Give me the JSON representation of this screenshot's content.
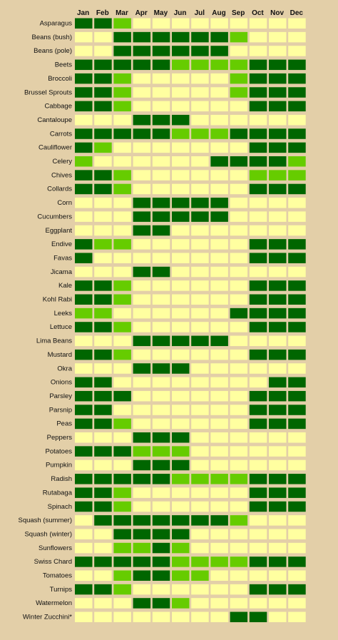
{
  "chart_data": {
    "type": "heatmap",
    "months": [
      "Jan",
      "Feb",
      "Mar",
      "Apr",
      "May",
      "Jun",
      "Jul",
      "Aug",
      "Sep",
      "Oct",
      "Nov",
      "Dec"
    ],
    "colors": {
      "0": "#ffffa0",
      "1": "#66cc00",
      "2": "#006600"
    },
    "rows": [
      {
        "crop": "Asparagus",
        "values": [
          2,
          2,
          1,
          0,
          0,
          0,
          0,
          0,
          0,
          0,
          0,
          0
        ]
      },
      {
        "crop": "Beans (bush)",
        "values": [
          0,
          0,
          2,
          2,
          2,
          2,
          2,
          2,
          1,
          0,
          0,
          0
        ]
      },
      {
        "crop": "Beans (pole)",
        "values": [
          0,
          0,
          2,
          2,
          2,
          2,
          2,
          2,
          0,
          0,
          0,
          0
        ]
      },
      {
        "crop": "Beets",
        "values": [
          2,
          2,
          2,
          2,
          2,
          1,
          1,
          1,
          1,
          2,
          2,
          2
        ]
      },
      {
        "crop": "Broccoli",
        "values": [
          2,
          2,
          1,
          0,
          0,
          0,
          0,
          0,
          1,
          2,
          2,
          2
        ]
      },
      {
        "crop": "Brussel Sprouts",
        "values": [
          2,
          2,
          1,
          0,
          0,
          0,
          0,
          0,
          1,
          2,
          2,
          2
        ]
      },
      {
        "crop": "Cabbage",
        "values": [
          2,
          2,
          1,
          0,
          0,
          0,
          0,
          0,
          0,
          2,
          2,
          2
        ]
      },
      {
        "crop": "Cantaloupe",
        "values": [
          0,
          0,
          0,
          2,
          2,
          2,
          0,
          0,
          0,
          0,
          0,
          0
        ]
      },
      {
        "crop": "Carrots",
        "values": [
          2,
          2,
          2,
          2,
          2,
          1,
          1,
          1,
          2,
          2,
          2,
          2
        ]
      },
      {
        "crop": "Cauliflower",
        "values": [
          2,
          1,
          0,
          0,
          0,
          0,
          0,
          0,
          0,
          2,
          2,
          2
        ]
      },
      {
        "crop": "Celery",
        "values": [
          1,
          0,
          0,
          0,
          0,
          0,
          0,
          2,
          2,
          2,
          2,
          1
        ]
      },
      {
        "crop": "Chives",
        "values": [
          2,
          2,
          1,
          0,
          0,
          0,
          0,
          0,
          0,
          1,
          1,
          1
        ]
      },
      {
        "crop": "Collards",
        "values": [
          2,
          2,
          1,
          0,
          0,
          0,
          0,
          0,
          0,
          2,
          2,
          2
        ]
      },
      {
        "crop": "Corn",
        "values": [
          0,
          0,
          0,
          2,
          2,
          2,
          2,
          2,
          0,
          0,
          0,
          0
        ]
      },
      {
        "crop": "Cucumbers",
        "values": [
          0,
          0,
          0,
          2,
          2,
          2,
          2,
          2,
          0,
          0,
          0,
          0
        ]
      },
      {
        "crop": "Eggplant",
        "values": [
          0,
          0,
          0,
          2,
          2,
          0,
          0,
          0,
          0,
          0,
          0,
          0
        ]
      },
      {
        "crop": "Endive",
        "values": [
          2,
          1,
          1,
          0,
          0,
          0,
          0,
          0,
          0,
          2,
          2,
          2
        ]
      },
      {
        "crop": "Favas",
        "values": [
          2,
          0,
          0,
          0,
          0,
          0,
          0,
          0,
          0,
          2,
          2,
          2
        ]
      },
      {
        "crop": "Jicama",
        "values": [
          0,
          0,
          0,
          2,
          2,
          0,
          0,
          0,
          0,
          0,
          0,
          0
        ]
      },
      {
        "crop": "Kale",
        "values": [
          2,
          2,
          1,
          0,
          0,
          0,
          0,
          0,
          0,
          2,
          2,
          2
        ]
      },
      {
        "crop": "Kohl Rabi",
        "values": [
          2,
          2,
          1,
          0,
          0,
          0,
          0,
          0,
          0,
          2,
          2,
          2
        ]
      },
      {
        "crop": "Leeks",
        "values": [
          1,
          1,
          0,
          0,
          0,
          0,
          0,
          0,
          2,
          2,
          2,
          2
        ]
      },
      {
        "crop": "Lettuce",
        "values": [
          2,
          2,
          1,
          0,
          0,
          0,
          0,
          0,
          0,
          2,
          2,
          2
        ]
      },
      {
        "crop": "Lima Beans",
        "values": [
          0,
          0,
          0,
          2,
          2,
          2,
          2,
          2,
          0,
          0,
          0,
          0
        ]
      },
      {
        "crop": "Mustard",
        "values": [
          2,
          2,
          1,
          0,
          0,
          0,
          0,
          0,
          0,
          2,
          2,
          2
        ]
      },
      {
        "crop": "Okra",
        "values": [
          0,
          0,
          0,
          2,
          2,
          2,
          0,
          0,
          0,
          0,
          0,
          0
        ]
      },
      {
        "crop": "Onions",
        "values": [
          2,
          2,
          0,
          0,
          0,
          0,
          0,
          0,
          0,
          0,
          2,
          2
        ]
      },
      {
        "crop": "Parsley",
        "values": [
          2,
          2,
          2,
          0,
          0,
          0,
          0,
          0,
          0,
          2,
          2,
          2
        ]
      },
      {
        "crop": "Parsnip",
        "values": [
          2,
          2,
          0,
          0,
          0,
          0,
          0,
          0,
          0,
          2,
          2,
          2
        ]
      },
      {
        "crop": "Peas",
        "values": [
          2,
          2,
          1,
          0,
          0,
          0,
          0,
          0,
          0,
          2,
          2,
          2
        ]
      },
      {
        "crop": "Peppers",
        "values": [
          0,
          0,
          0,
          2,
          2,
          2,
          0,
          0,
          0,
          0,
          0,
          0
        ]
      },
      {
        "crop": "Potatoes",
        "values": [
          2,
          2,
          2,
          1,
          1,
          1,
          0,
          0,
          0,
          0,
          0,
          0
        ]
      },
      {
        "crop": "Pumpkin",
        "values": [
          0,
          0,
          0,
          2,
          2,
          2,
          0,
          0,
          0,
          0,
          0,
          0
        ]
      },
      {
        "crop": "Radish",
        "values": [
          2,
          2,
          2,
          2,
          2,
          1,
          1,
          1,
          1,
          2,
          2,
          2
        ]
      },
      {
        "crop": "Rutabaga",
        "values": [
          2,
          2,
          1,
          0,
          0,
          0,
          0,
          0,
          0,
          2,
          2,
          2
        ]
      },
      {
        "crop": "Spinach",
        "values": [
          2,
          2,
          1,
          0,
          0,
          0,
          0,
          0,
          0,
          2,
          2,
          2
        ]
      },
      {
        "crop": "Squash (summer)",
        "values": [
          0,
          2,
          2,
          2,
          2,
          2,
          2,
          2,
          1,
          0,
          0,
          0
        ]
      },
      {
        "crop": "Squash (winter)",
        "values": [
          0,
          0,
          2,
          2,
          2,
          2,
          0,
          0,
          0,
          0,
          0,
          0
        ]
      },
      {
        "crop": "Sunflowers",
        "values": [
          0,
          0,
          1,
          1,
          2,
          1,
          0,
          0,
          0,
          0,
          0,
          0
        ]
      },
      {
        "crop": "Swiss Chard",
        "values": [
          2,
          2,
          2,
          2,
          2,
          1,
          1,
          1,
          1,
          2,
          2,
          2
        ]
      },
      {
        "crop": "Tomatoes",
        "values": [
          0,
          0,
          1,
          2,
          2,
          1,
          1,
          0,
          0,
          0,
          0,
          0
        ]
      },
      {
        "crop": "Turnips",
        "values": [
          2,
          2,
          1,
          0,
          0,
          0,
          0,
          0,
          0,
          2,
          2,
          2
        ]
      },
      {
        "crop": "Watermelon",
        "values": [
          0,
          0,
          0,
          2,
          2,
          1,
          0,
          0,
          0,
          0,
          0,
          0
        ]
      },
      {
        "crop": "Winter Zucchini*",
        "values": [
          0,
          0,
          0,
          0,
          0,
          0,
          0,
          0,
          2,
          2,
          0,
          0
        ]
      }
    ]
  }
}
